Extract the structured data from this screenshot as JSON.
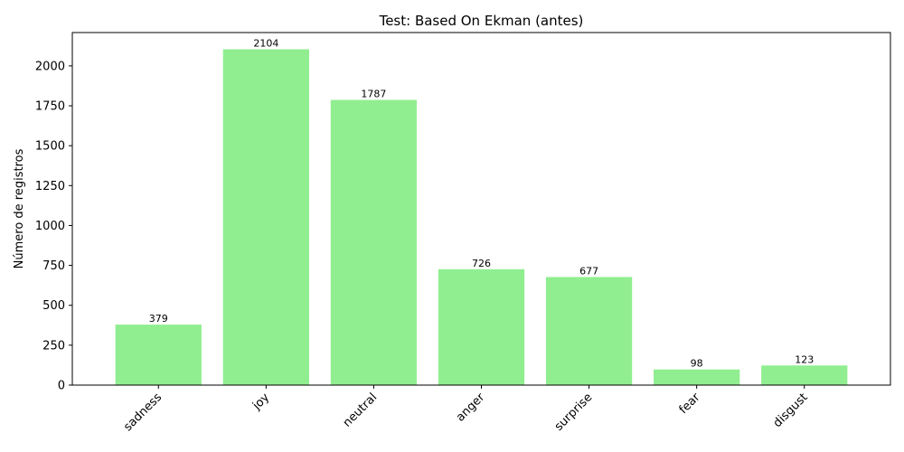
{
  "chart_data": {
    "type": "bar",
    "title": "Test: Based On Ekman (antes)",
    "xlabel": "",
    "ylabel": "Número de registros",
    "categories": [
      "sadness",
      "joy",
      "neutral",
      "anger",
      "surprise",
      "fear",
      "disgust"
    ],
    "values": [
      379,
      2104,
      1787,
      726,
      677,
      98,
      123
    ],
    "ylim": [
      0,
      2209
    ],
    "yticks": [
      0,
      250,
      500,
      750,
      1000,
      1250,
      1500,
      1750,
      2000
    ],
    "bar_color": "#90ee90",
    "grid": false,
    "legend": "none",
    "x_tick_rotation_deg": 45
  }
}
